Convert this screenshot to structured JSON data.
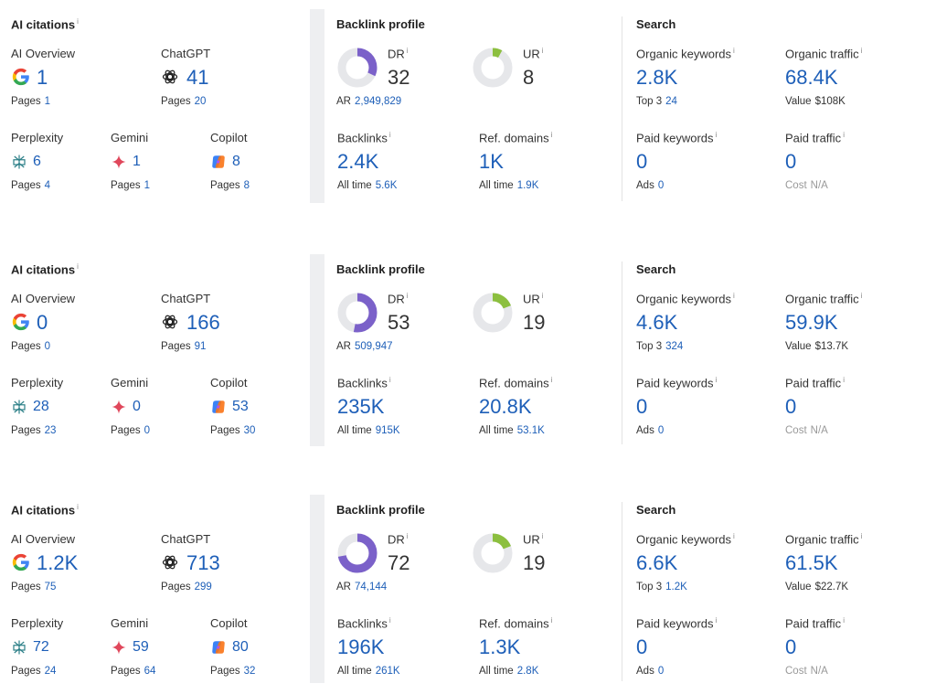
{
  "labels": {
    "ai_citations": "AI citations",
    "ai_overview": "AI Overview",
    "chatgpt": "ChatGPT",
    "perplexity": "Perplexity",
    "gemini": "Gemini",
    "copilot": "Copilot",
    "pages": "Pages",
    "backlink_profile": "Backlink profile",
    "dr": "DR",
    "ur": "UR",
    "ar": "AR",
    "backlinks": "Backlinks",
    "ref_domains": "Ref. domains",
    "all_time": "All time",
    "search": "Search",
    "organic_keywords": "Organic keywords",
    "organic_traffic": "Organic traffic",
    "top3": "Top 3",
    "value": "Value",
    "paid_keywords": "Paid keywords",
    "paid_traffic": "Paid traffic",
    "ads": "Ads",
    "cost": "Cost",
    "info_mark": "i"
  },
  "colors": {
    "link_blue": "#1e5fb8",
    "dr_purple": "#7b61c9",
    "ur_green": "#8cbf3f",
    "donut_track": "#e6e7ea",
    "gemini_red": "#e0475b",
    "perplexity_teal": "#2b7f87"
  },
  "icons": [
    "google-icon",
    "chatgpt-icon",
    "perplexity-icon",
    "gemini-icon",
    "copilot-icon",
    "dr-donut",
    "ur-donut"
  ],
  "panels": [
    {
      "ai": {
        "ai_overview": {
          "value": "1",
          "pages": "1"
        },
        "chatgpt": {
          "value": "41",
          "pages": "20"
        },
        "perplexity": {
          "value": "6",
          "pages": "4"
        },
        "gemini": {
          "value": "1",
          "pages": "1"
        },
        "copilot": {
          "value": "8",
          "pages": "8"
        }
      },
      "backlink": {
        "dr": "32",
        "dr_fraction": 0.32,
        "ur": "8",
        "ur_fraction": 0.08,
        "ar": "2,949,829",
        "backlinks": "2.4K",
        "backlinks_all_time": "5.6K",
        "ref_domains": "1K",
        "ref_domains_all_time": "1.9K"
      },
      "search": {
        "organic_keywords": "2.8K",
        "top3": "24",
        "organic_traffic": "68.4K",
        "value": "$108K",
        "paid_keywords": "0",
        "ads": "0",
        "paid_traffic": "0",
        "cost": "N/A"
      }
    },
    {
      "ai": {
        "ai_overview": {
          "value": "0",
          "pages": "0"
        },
        "chatgpt": {
          "value": "166",
          "pages": "91"
        },
        "perplexity": {
          "value": "28",
          "pages": "23"
        },
        "gemini": {
          "value": "0",
          "pages": "0"
        },
        "copilot": {
          "value": "53",
          "pages": "30"
        }
      },
      "backlink": {
        "dr": "53",
        "dr_fraction": 0.53,
        "ur": "19",
        "ur_fraction": 0.19,
        "ar": "509,947",
        "backlinks": "235K",
        "backlinks_all_time": "915K",
        "ref_domains": "20.8K",
        "ref_domains_all_time": "53.1K"
      },
      "search": {
        "organic_keywords": "4.6K",
        "top3": "324",
        "organic_traffic": "59.9K",
        "value": "$13.7K",
        "paid_keywords": "0",
        "ads": "0",
        "paid_traffic": "0",
        "cost": "N/A"
      }
    },
    {
      "ai": {
        "ai_overview": {
          "value": "1.2K",
          "pages": "75"
        },
        "chatgpt": {
          "value": "713",
          "pages": "299"
        },
        "perplexity": {
          "value": "72",
          "pages": "24"
        },
        "gemini": {
          "value": "59",
          "pages": "64"
        },
        "copilot": {
          "value": "80",
          "pages": "32"
        }
      },
      "backlink": {
        "dr": "72",
        "dr_fraction": 0.72,
        "ur": "19",
        "ur_fraction": 0.19,
        "ar": "74,144",
        "backlinks": "196K",
        "backlinks_all_time": "261K",
        "ref_domains": "1.3K",
        "ref_domains_all_time": "2.8K"
      },
      "search": {
        "organic_keywords": "6.6K",
        "top3": "1.2K",
        "organic_traffic": "61.5K",
        "value": "$22.7K",
        "paid_keywords": "0",
        "ads": "0",
        "paid_traffic": "0",
        "cost": "N/A"
      }
    }
  ]
}
